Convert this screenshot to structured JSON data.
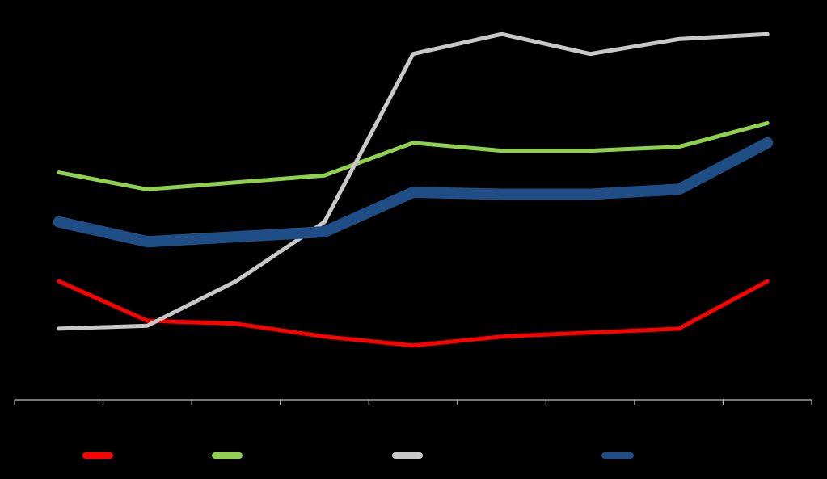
{
  "chart_data": {
    "type": "line",
    "title": "",
    "xlabel": "",
    "ylabel": "",
    "categories": [
      "",
      "",
      "",
      "",
      "",
      "",
      "",
      "",
      ""
    ],
    "series": [
      {
        "name": "",
        "color": "#ff0000",
        "width": "normal",
        "values": [
          12.0,
          8.0,
          7.7,
          6.4,
          5.5,
          6.4,
          6.8,
          7.2,
          12.0
        ]
      },
      {
        "name": "",
        "color": "#8fd14f",
        "width": "normal",
        "values": [
          23.0,
          21.3,
          22.0,
          22.7,
          26.0,
          25.2,
          25.2,
          25.6,
          28.0
        ]
      },
      {
        "name": "",
        "color": "#c8c8c8",
        "width": "normal",
        "values": [
          7.2,
          7.5,
          12.0,
          18.0,
          35.0,
          37.0,
          35.0,
          36.5,
          37.0
        ]
      },
      {
        "name": "",
        "color": "#1f4e87",
        "width": "thick",
        "values": [
          18.0,
          16.0,
          16.5,
          17.0,
          21.0,
          20.8,
          20.8,
          21.3,
          26.0
        ]
      }
    ],
    "ylim": [
      0,
      38
    ],
    "grid": false,
    "legend": "bottom",
    "axis_color": "#bfbfbf"
  }
}
